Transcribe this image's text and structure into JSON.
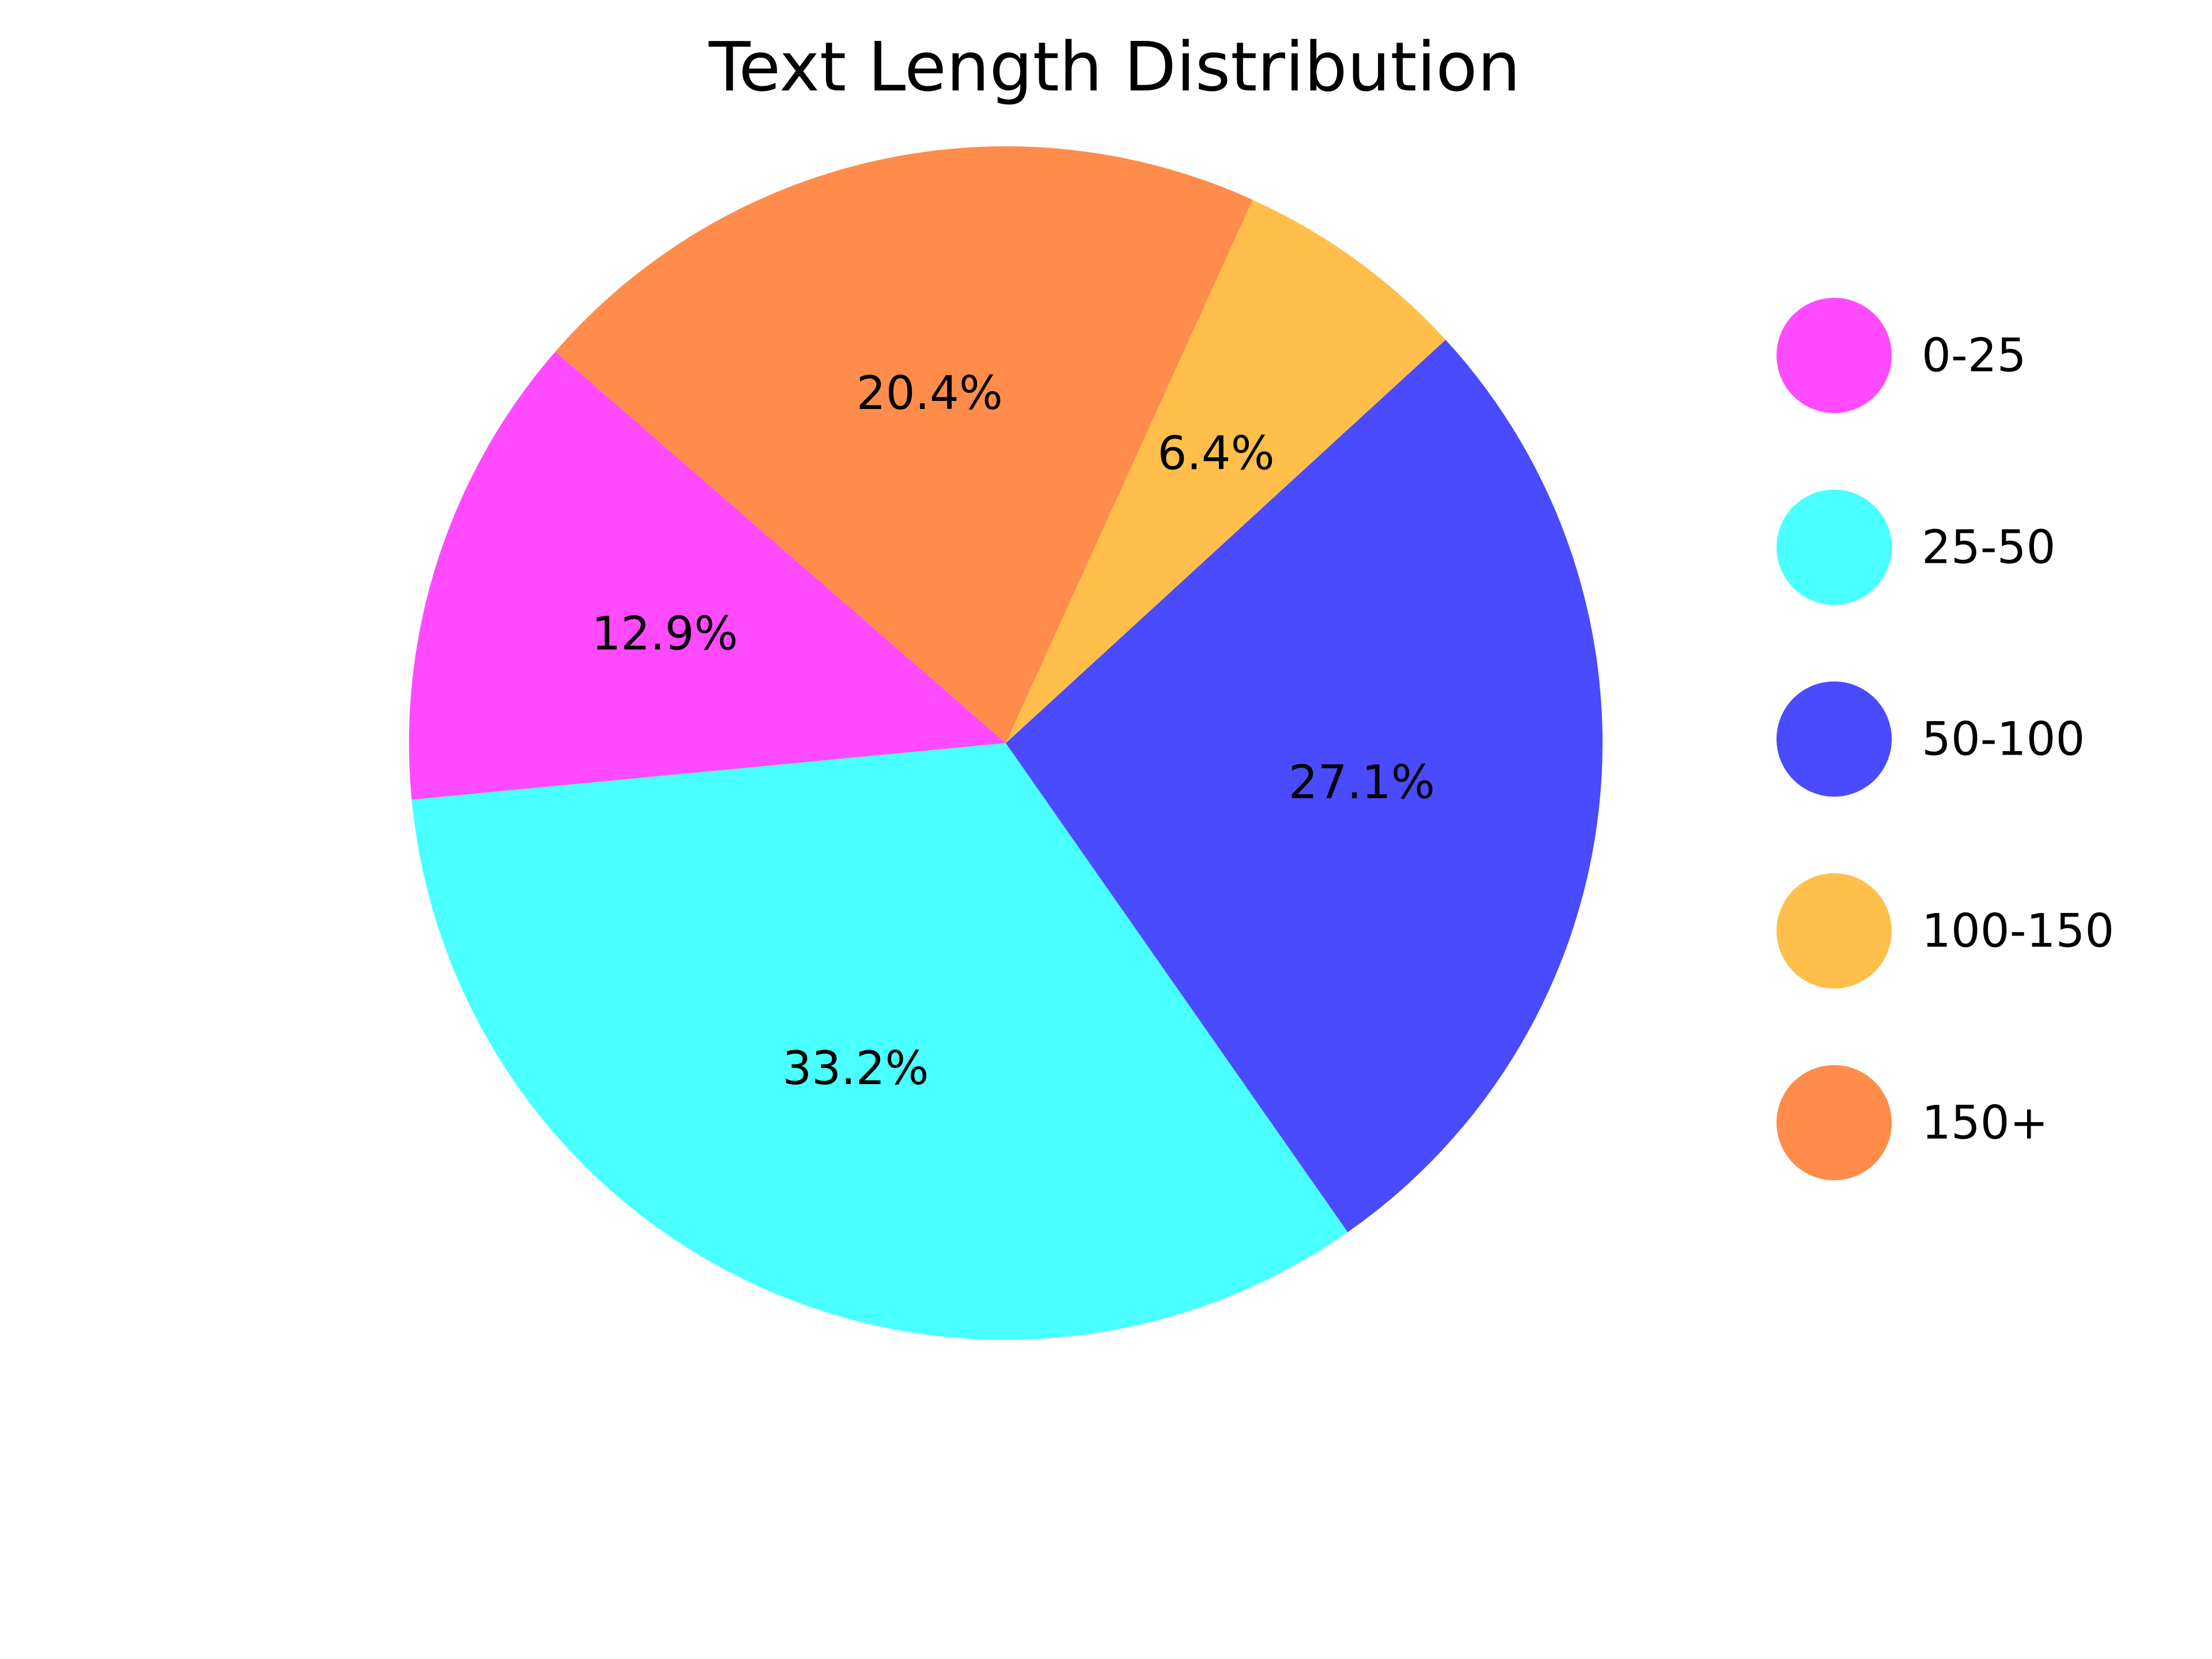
{
  "chart_data": {
    "type": "pie",
    "title": "Text Length Distribution",
    "start_angle_deg": 139,
    "direction": "counterclockwise",
    "slices": [
      {
        "label": "0-25",
        "value": 12.9,
        "display": "12.9%",
        "color": "#ff4aff"
      },
      {
        "label": "25-50",
        "value": 33.2,
        "display": "33.2%",
        "color": "#4affff"
      },
      {
        "label": "50-100",
        "value": 27.1,
        "display": "27.1%",
        "color": "#4a4aff"
      },
      {
        "label": "100-150",
        "value": 6.4,
        "display": "6.4%",
        "color": "#ffbf4a"
      },
      {
        "label": "150+",
        "value": 20.4,
        "display": "20.4%",
        "color": "#ff8c4a"
      }
    ],
    "legend": {
      "placement": "right",
      "marker": "circle"
    }
  }
}
